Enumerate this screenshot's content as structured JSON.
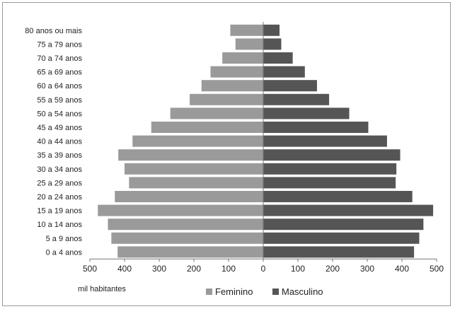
{
  "chart_data": {
    "type": "bar",
    "orientation": "horizontal-pyramid",
    "categories": [
      "0 a 4 anos",
      "5 a 9 anos",
      "10 a 14 anos",
      "15 a 19 anos",
      "20 a 24 anos",
      "25 a 29 anos",
      "30 a 34 anos",
      "35 a 39 anos",
      "40 a 44 anos",
      "45 a 49 anos",
      "50 a 54 anos",
      "55 a 59 anos",
      "60 a 64 anos",
      "65 a 69 anos",
      "70 a 74 anos",
      "75 a 79 anos",
      "80 anos ou mais"
    ],
    "series": [
      {
        "name": "Feminino",
        "color": "#9a9a9a",
        "values": [
          420,
          438,
          448,
          477,
          428,
          387,
          400,
          418,
          377,
          323,
          268,
          212,
          178,
          152,
          118,
          80,
          95
        ]
      },
      {
        "name": "Masculino",
        "color": "#555555",
        "values": [
          435,
          450,
          462,
          490,
          430,
          382,
          384,
          395,
          357,
          303,
          248,
          190,
          155,
          120,
          85,
          52,
          47
        ]
      }
    ],
    "xticks": [
      "500",
      "400",
      "300",
      "200",
      "100",
      "0",
      "100",
      "200",
      "300",
      "400",
      "500"
    ],
    "xlim": [
      -500,
      500
    ],
    "xlabel": "mil habitantes",
    "ylabel": "",
    "title": "",
    "grid": false,
    "legend_position": "bottom"
  }
}
